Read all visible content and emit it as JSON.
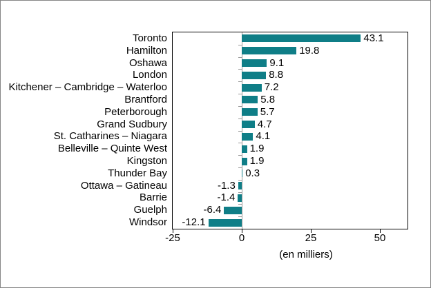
{
  "chart_data": {
    "type": "bar",
    "orientation": "horizontal",
    "title": "",
    "xlabel": "(en milliers)",
    "ylabel": "",
    "categories": [
      "Toronto",
      "Hamilton",
      "Oshawa",
      "London",
      "Kitchener – Cambridge – Waterloo",
      "Brantford",
      "Peterborough",
      "Grand Sudbury",
      "St. Catharines – Niagara",
      "Belleville – Quinte West",
      "Kingston",
      "Thunder Bay",
      "Ottawa – Gatineau",
      "Barrie",
      "Guelph",
      "Windsor"
    ],
    "values": [
      43.1,
      19.8,
      9.1,
      8.8,
      7.2,
      5.8,
      5.7,
      4.7,
      4.1,
      1.9,
      1.9,
      0.3,
      -1.3,
      -1.4,
      -6.4,
      -12.1
    ],
    "value_labels": [
      "43.1",
      "19.8",
      "9.1",
      "8.8",
      "7.2",
      "5.8",
      "5.7",
      "4.7",
      "4.1",
      "1.9",
      "1.9",
      "0.3",
      "-1.3",
      "-1.4",
      "-6.4",
      "-12.1"
    ],
    "x_ticks": [
      -25,
      0,
      25,
      50
    ],
    "x_tick_labels": [
      "-25",
      "0",
      "25",
      "50"
    ],
    "xlim": [
      -25,
      60
    ],
    "grid": false,
    "legend": false,
    "bar_color": "#0F7E87"
  },
  "colors": {
    "bar": "#0F7E87",
    "plot_border": "#000000",
    "zero_axis": "#999999",
    "category_tick": "#999999",
    "value_tick": "#000000",
    "text": "#000000",
    "outer_border": "#858585",
    "background": "#FFFFFF"
  }
}
